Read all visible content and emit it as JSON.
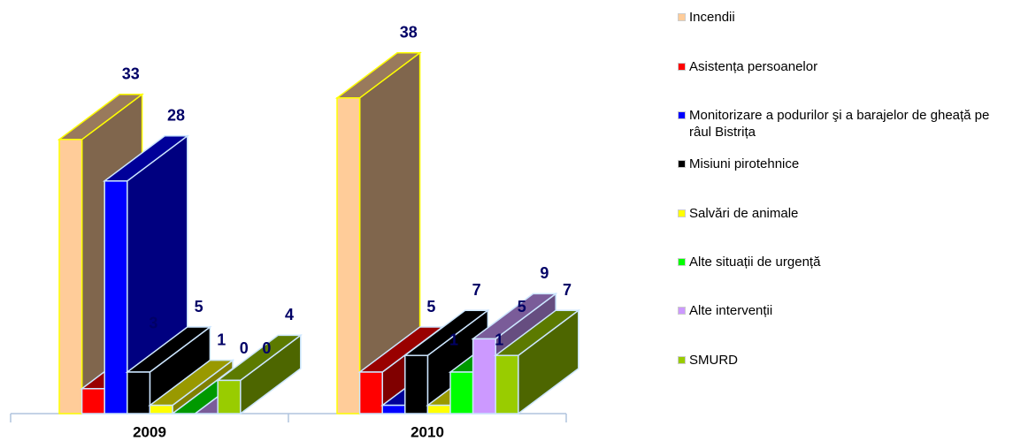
{
  "chart_data": {
    "type": "bar3d",
    "categories": [
      "2009",
      "2010"
    ],
    "series": [
      {
        "name": "Incendii",
        "color": "#ffcc99",
        "values": [
          33,
          38
        ]
      },
      {
        "name": "Asistența persoanelor",
        "color": "#ff0000",
        "values": [
          3,
          5
        ]
      },
      {
        "name": "Monitorizare a podurilor şi a barajelor de gheață pe râul Bistrița",
        "color": "#0000ff",
        "values": [
          28,
          1
        ]
      },
      {
        "name": "Misiuni pirotehnice",
        "color": "#000000",
        "values": [
          5,
          7
        ]
      },
      {
        "name": "Salvări de animale",
        "color": "#ffff00",
        "values": [
          1,
          1
        ]
      },
      {
        "name": "Alte situații de urgență",
        "color": "#00ff00",
        "values": [
          0,
          5
        ]
      },
      {
        "name": "Alte intervenții",
        "color": "#cc99ff",
        "values": [
          0,
          9
        ]
      },
      {
        "name": "SMURD",
        "color": "#99cc00",
        "values": [
          4,
          7
        ]
      }
    ]
  }
}
